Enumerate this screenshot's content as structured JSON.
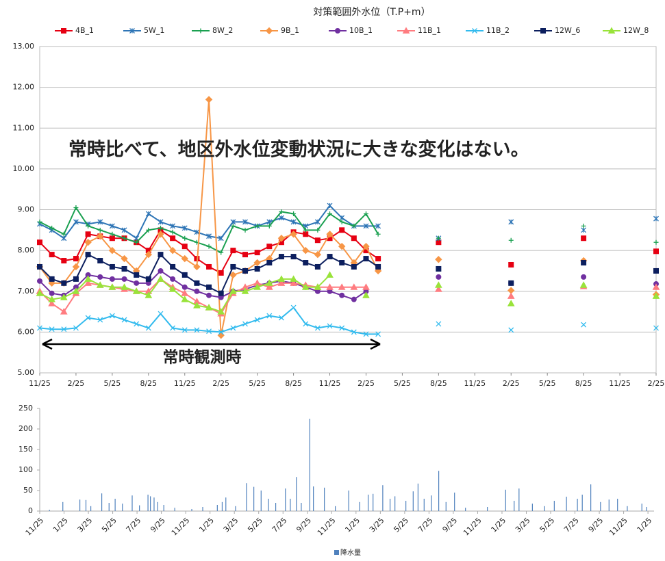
{
  "chart_data": [
    {
      "type": "line",
      "title": "対策範囲外水位（T.P+m）",
      "annotations": [
        "常時比べて、地区外水位変動状況に大きな変化はない。",
        "常時観測時"
      ],
      "x": [
        0,
        1,
        2,
        3,
        4,
        5,
        6,
        7,
        8,
        9,
        10,
        11,
        12,
        13,
        14,
        15,
        16,
        17,
        18,
        19,
        20,
        21,
        22,
        23,
        24,
        25,
        26,
        27,
        28,
        31,
        33,
        36,
        39,
        42,
        45,
        48,
        51
      ],
      "xlim": [
        0,
        51
      ],
      "xticks": [
        {
          "value": 0,
          "label": "11/25"
        },
        {
          "value": 3,
          "label": "2/25"
        },
        {
          "value": 6,
          "label": "5/25"
        },
        {
          "value": 9,
          "label": "8/25"
        },
        {
          "value": 12,
          "label": "11/25"
        },
        {
          "value": 15,
          "label": "2/25"
        },
        {
          "value": 18,
          "label": "5/25"
        },
        {
          "value": 21,
          "label": "8/25"
        },
        {
          "value": 24,
          "label": "11/25"
        },
        {
          "value": 27,
          "label": "2/25"
        },
        {
          "value": 30,
          "label": "5/25"
        },
        {
          "value": 33,
          "label": "8/25"
        },
        {
          "value": 36,
          "label": "11/25"
        },
        {
          "value": 39,
          "label": "2/25"
        },
        {
          "value": 42,
          "label": "5/25"
        },
        {
          "value": 45,
          "label": "8/25"
        },
        {
          "value": 48,
          "label": "11/25"
        },
        {
          "value": 51,
          "label": "2/25"
        }
      ],
      "ylim": [
        5,
        13
      ],
      "yticks": [
        {
          "value": 5,
          "label": "5.00"
        },
        {
          "value": 6,
          "label": "6.00"
        },
        {
          "value": 7,
          "label": "7.00"
        },
        {
          "value": 8,
          "label": "8.00"
        },
        {
          "value": 9,
          "label": "9.00"
        },
        {
          "value": 10,
          "label": "10.00"
        },
        {
          "value": 11,
          "label": "11.00"
        },
        {
          "value": 12,
          "label": "12.00"
        },
        {
          "value": 13,
          "label": "13.00"
        }
      ],
      "grid": true,
      "legend": "top",
      "series": [
        {
          "name": "4B_1",
          "color": "#e60012",
          "marker": "square",
          "values": [
            8.2,
            7.9,
            7.75,
            7.8,
            8.4,
            8.35,
            8.3,
            8.3,
            8.2,
            8.0,
            8.5,
            8.3,
            8.1,
            7.8,
            7.6,
            7.45,
            8.0,
            7.9,
            7.95,
            8.1,
            8.2,
            8.45,
            8.4,
            8.25,
            8.3,
            8.5,
            8.3,
            8.0,
            7.8,
            null,
            8.2,
            null,
            7.65,
            null,
            8.3,
            null,
            7.98
          ]
        },
        {
          "name": "5W_1",
          "color": "#2e75b6",
          "marker": "star",
          "values": [
            8.65,
            8.5,
            8.3,
            8.7,
            8.65,
            8.7,
            8.6,
            8.5,
            8.3,
            8.9,
            8.7,
            8.6,
            8.55,
            8.45,
            8.35,
            8.3,
            8.7,
            8.7,
            8.6,
            8.7,
            8.8,
            8.7,
            8.6,
            8.7,
            9.1,
            8.8,
            8.6,
            8.6,
            8.6,
            null,
            8.3,
            null,
            8.7,
            null,
            8.5,
            null,
            8.78
          ]
        },
        {
          "name": "8W_2",
          "color": "#1aa050",
          "marker": "plus",
          "values": [
            8.7,
            8.55,
            8.4,
            9.05,
            8.6,
            8.5,
            8.4,
            8.3,
            8.2,
            8.5,
            8.55,
            8.45,
            8.3,
            8.2,
            8.1,
            7.95,
            8.6,
            8.5,
            8.6,
            8.6,
            8.95,
            8.9,
            8.5,
            8.5,
            8.9,
            8.7,
            8.6,
            8.9,
            8.4,
            null,
            8.3,
            null,
            8.25,
            null,
            8.6,
            null,
            8.2
          ]
        },
        {
          "name": "9B_1",
          "color": "#f79646",
          "marker": "diamond",
          "values": [
            7.6,
            7.2,
            7.2,
            7.6,
            8.2,
            8.35,
            8.0,
            7.8,
            7.5,
            7.9,
            8.4,
            8.0,
            7.8,
            7.6,
            11.7,
            5.92,
            7.4,
            7.5,
            7.7,
            7.8,
            8.3,
            8.4,
            8.0,
            7.9,
            8.4,
            8.1,
            7.7,
            8.1,
            7.5,
            null,
            7.78,
            null,
            7.02,
            null,
            7.75,
            null,
            6.92
          ]
        },
        {
          "name": "10B_1",
          "color": "#7030a0",
          "marker": "circle",
          "values": [
            7.25,
            6.95,
            6.9,
            7.1,
            7.4,
            7.35,
            7.3,
            7.3,
            7.2,
            7.2,
            7.5,
            7.3,
            7.1,
            7.0,
            6.9,
            6.85,
            7.0,
            7.05,
            7.15,
            7.2,
            7.25,
            7.2,
            7.1,
            7.0,
            7.0,
            6.9,
            6.8,
            7.0,
            null,
            null,
            7.35,
            null,
            7.2,
            null,
            7.35,
            null,
            7.18
          ]
        },
        {
          "name": "11B_1",
          "color": "#ff7c80",
          "marker": "triangle",
          "values": [
            7.0,
            6.7,
            6.5,
            6.95,
            7.2,
            7.15,
            7.1,
            7.05,
            7.0,
            7.0,
            7.3,
            7.1,
            6.95,
            6.75,
            6.6,
            6.45,
            6.95,
            7.1,
            7.2,
            7.1,
            7.2,
            7.2,
            7.15,
            7.1,
            7.1,
            7.1,
            7.1,
            7.1,
            null,
            null,
            7.05,
            null,
            6.88,
            null,
            7.12,
            null,
            7.1
          ]
        },
        {
          "name": "11B_2",
          "color": "#33bbee",
          "marker": "x",
          "values": [
            6.1,
            6.07,
            6.07,
            6.1,
            6.35,
            6.3,
            6.4,
            6.3,
            6.2,
            6.1,
            6.45,
            6.1,
            6.05,
            6.05,
            6.02,
            6.0,
            6.1,
            6.2,
            6.3,
            6.4,
            6.35,
            6.6,
            6.2,
            6.1,
            6.15,
            6.1,
            6.0,
            5.95,
            5.95,
            null,
            6.2,
            null,
            6.05,
            null,
            6.18,
            null,
            6.1
          ]
        },
        {
          "name": "12W_6",
          "color": "#0c1f5e",
          "marker": "square",
          "values": [
            7.6,
            7.3,
            7.2,
            7.3,
            7.9,
            7.75,
            7.6,
            7.55,
            7.4,
            7.3,
            7.9,
            7.6,
            7.4,
            7.2,
            7.1,
            6.95,
            7.6,
            7.5,
            7.55,
            7.7,
            7.85,
            7.85,
            7.7,
            7.6,
            7.85,
            7.7,
            7.6,
            7.8,
            7.6,
            null,
            7.55,
            null,
            7.2,
            null,
            7.7,
            null,
            7.5
          ]
        },
        {
          "name": "12W_8",
          "color": "#99e33a",
          "marker": "triangle",
          "values": [
            6.95,
            6.8,
            6.85,
            7.0,
            7.3,
            7.15,
            7.1,
            7.1,
            7.0,
            6.9,
            7.3,
            7.05,
            6.8,
            6.65,
            6.6,
            6.5,
            7.0,
            7.0,
            7.1,
            7.2,
            7.3,
            7.3,
            7.1,
            7.1,
            7.4,
            null,
            null,
            6.9,
            null,
            null,
            7.15,
            null,
            6.7,
            null,
            7.15,
            null,
            6.88
          ]
        }
      ]
    },
    {
      "type": "bar",
      "legend": "bottom",
      "xlim": [
        0,
        50.5
      ],
      "xticks": [
        {
          "value": 0,
          "label": "11/25"
        },
        {
          "value": 2,
          "label": "1/25"
        },
        {
          "value": 4,
          "label": "3/25"
        },
        {
          "value": 6,
          "label": "5/25"
        },
        {
          "value": 8,
          "label": "7/25"
        },
        {
          "value": 10,
          "label": "9/25"
        },
        {
          "value": 12,
          "label": "11/25"
        },
        {
          "value": 14,
          "label": "1/25"
        },
        {
          "value": 16,
          "label": "3/25"
        },
        {
          "value": 18,
          "label": "5/25"
        },
        {
          "value": 20,
          "label": "7/25"
        },
        {
          "value": 22,
          "label": "9/25"
        },
        {
          "value": 24,
          "label": "11/25"
        },
        {
          "value": 26,
          "label": "1/25"
        },
        {
          "value": 28,
          "label": "3/25"
        },
        {
          "value": 30,
          "label": "5/25"
        },
        {
          "value": 32,
          "label": "7/25"
        },
        {
          "value": 34,
          "label": "9/25"
        },
        {
          "value": 36,
          "label": "11/25"
        },
        {
          "value": 38,
          "label": "1/25"
        },
        {
          "value": 40,
          "label": "3/25"
        },
        {
          "value": 42,
          "label": "5/25"
        },
        {
          "value": 44,
          "label": "7/25"
        },
        {
          "value": 46,
          "label": "9/25"
        },
        {
          "value": 48,
          "label": "11/25"
        },
        {
          "value": 50,
          "label": "1/25"
        }
      ],
      "ylim": [
        0,
        250
      ],
      "yticks": [
        0,
        50,
        100,
        150,
        200,
        250
      ],
      "series": [
        {
          "name": "降水量",
          "color": "#4f81bd",
          "x": [
            0.8,
            1.9,
            3.3,
            3.8,
            4.2,
            5.1,
            5.7,
            6.2,
            6.8,
            7.6,
            8.2,
            8.9,
            9.1,
            9.4,
            9.7,
            10.2,
            11.1,
            12.5,
            13.4,
            14.6,
            15.0,
            15.3,
            16.1,
            17.0,
            17.6,
            18.2,
            18.8,
            19.4,
            20.2,
            20.6,
            21.1,
            21.5,
            22.2,
            22.5,
            23.4,
            24.3,
            25.4,
            26.3,
            27.0,
            27.4,
            28.2,
            28.8,
            29.2,
            30.1,
            30.7,
            31.1,
            31.6,
            32.2,
            32.8,
            33.4,
            34.1,
            35.0,
            36.8,
            38.3,
            39.0,
            39.4,
            40.5,
            41.5,
            42.3,
            43.3,
            44.2,
            44.6,
            45.3,
            46.1,
            46.8,
            47.5,
            48.3,
            49.5,
            49.9
          ],
          "values": [
            3,
            22,
            28,
            27,
            12,
            43,
            20,
            30,
            18,
            38,
            14,
            40,
            36,
            33,
            22,
            15,
            8,
            5,
            10,
            15,
            22,
            33,
            12,
            68,
            59,
            50,
            30,
            20,
            55,
            30,
            83,
            20,
            225,
            60,
            57,
            12,
            50,
            22,
            40,
            42,
            63,
            30,
            36,
            25,
            48,
            67,
            30,
            38,
            98,
            22,
            45,
            8,
            10,
            52,
            25,
            55,
            18,
            12,
            25,
            35,
            30,
            40,
            65,
            22,
            28,
            30,
            12,
            18,
            10
          ]
        }
      ]
    }
  ]
}
